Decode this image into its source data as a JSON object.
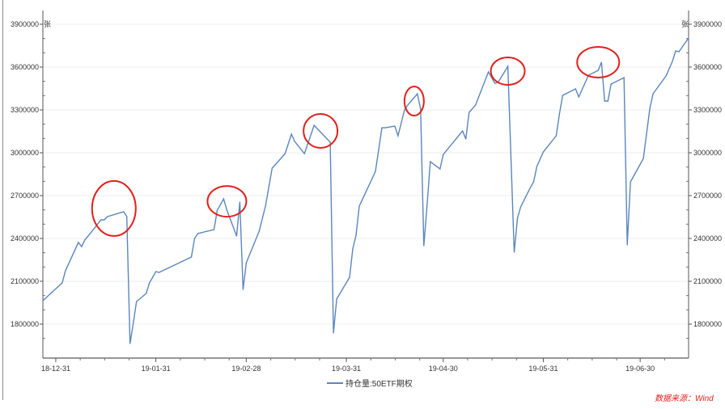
{
  "chart_data": {
    "type": "line",
    "title": "",
    "xlabel": "",
    "ylabel_left": "张",
    "ylabel_right": "张",
    "xlim": [
      "2018-12-27",
      "2019-07-15"
    ],
    "ylim": [
      1650000,
      3960000
    ],
    "grid": true,
    "legend": "bottom-center",
    "x_ticks": [
      {
        "date": "2018-12-31",
        "label": "18-12-31"
      },
      {
        "date": "2019-01-31",
        "label": "19-01-31"
      },
      {
        "date": "2019-02-28",
        "label": "19-02-28"
      },
      {
        "date": "2019-03-31",
        "label": "19-03-31"
      },
      {
        "date": "2019-04-30",
        "label": "19-04-30"
      },
      {
        "date": "2019-05-31",
        "label": "19-05-31"
      },
      {
        "date": "2019-06-30",
        "label": "19-06-30"
      }
    ],
    "y_ticks": [
      {
        "value": 1800000,
        "label": "1800000"
      },
      {
        "value": 2100000,
        "label": "2100000"
      },
      {
        "value": 2400000,
        "label": "2400000"
      },
      {
        "value": 2700000,
        "label": "2700000"
      },
      {
        "value": 3000000,
        "label": "3000000"
      },
      {
        "value": 3300000,
        "label": "3300000"
      },
      {
        "value": 3600000,
        "label": "3600000"
      },
      {
        "value": 3900000,
        "label": "3900000"
      }
    ],
    "series": [
      {
        "name": "持仓量:50ETF期权",
        "color": "#5b86bd",
        "x": [
          "2018-12-27",
          "2019-01-02",
          "2019-01-03",
          "2019-01-07",
          "2019-01-08",
          "2019-01-09",
          "2019-01-10",
          "2019-01-14",
          "2019-01-15",
          "2019-01-16",
          "2019-01-21",
          "2019-01-22",
          "2019-01-23",
          "2019-01-24",
          "2019-01-25",
          "2019-01-28",
          "2019-01-29",
          "2019-01-30",
          "2019-01-31",
          "2019-02-01",
          "2019-02-11",
          "2019-02-12",
          "2019-02-13",
          "2019-02-14",
          "2019-02-18",
          "2019-02-19",
          "2019-02-21",
          "2019-02-22",
          "2019-02-25",
          "2019-02-26",
          "2019-02-27",
          "2019-02-28",
          "2019-03-04",
          "2019-03-06",
          "2019-03-08",
          "2019-03-12",
          "2019-03-14",
          "2019-03-15",
          "2019-03-18",
          "2019-03-21",
          "2019-03-26",
          "2019-03-27",
          "2019-03-28",
          "2019-04-01",
          "2019-04-02",
          "2019-04-03",
          "2019-04-04",
          "2019-04-09",
          "2019-04-11",
          "2019-04-12",
          "2019-04-15",
          "2019-04-16",
          "2019-04-18",
          "2019-04-19",
          "2019-04-22",
          "2019-04-23",
          "2019-04-24",
          "2019-04-25",
          "2019-04-26",
          "2019-04-29",
          "2019-04-30",
          "2019-05-06",
          "2019-05-07",
          "2019-05-08",
          "2019-05-10",
          "2019-05-14",
          "2019-05-16",
          "2019-05-17",
          "2019-05-20",
          "2019-05-22",
          "2019-05-23",
          "2019-05-24",
          "2019-05-27",
          "2019-05-28",
          "2019-05-29",
          "2019-05-31",
          "2019-06-04",
          "2019-06-05",
          "2019-06-06",
          "2019-06-10",
          "2019-06-11",
          "2019-06-14",
          "2019-06-17",
          "2019-06-18",
          "2019-06-19",
          "2019-06-20",
          "2019-06-21",
          "2019-06-25",
          "2019-06-26",
          "2019-06-27",
          "2019-07-01",
          "2019-07-03",
          "2019-07-04",
          "2019-07-08",
          "2019-07-10",
          "2019-07-11",
          "2019-07-12",
          "2019-07-15"
        ],
        "values": [
          1964000,
          2089000,
          2174000,
          2372000,
          2343000,
          2390000,
          2417000,
          2530000,
          2530000,
          2553000,
          2587000,
          2553000,
          1664000,
          1806000,
          1958000,
          2015000,
          2089000,
          2128000,
          2168000,
          2162000,
          2270000,
          2400000,
          2434000,
          2440000,
          2462000,
          2598000,
          2677000,
          2598000,
          2417000,
          2655000,
          2043000,
          2230000,
          2451000,
          2632000,
          2892000,
          2994000,
          3130000,
          3079000,
          2994000,
          3192000,
          3074000,
          1738000,
          1976000,
          2128000,
          2327000,
          2422000,
          2626000,
          2870000,
          3175000,
          3175000,
          3187000,
          3119000,
          3300000,
          3334000,
          3413000,
          3306000,
          2349000,
          2632000,
          2938000,
          2887000,
          2988000,
          3153000,
          3096000,
          3283000,
          3334000,
          3566000,
          3487000,
          3493000,
          3605000,
          2304000,
          2542000,
          2621000,
          2757000,
          2796000,
          2904000,
          3006000,
          3119000,
          3272000,
          3402000,
          3447000,
          3391000,
          3543000,
          3577000,
          3634000,
          3362000,
          3362000,
          3481000,
          3526000,
          2355000,
          2796000,
          2960000,
          3311000,
          3413000,
          3538000,
          3640000,
          3713000,
          3707000,
          3804000
        ]
      }
    ],
    "annotations": [
      {
        "type": "circle",
        "color": "#e0201b",
        "date": "2019-01-18",
        "value": 2610000
      },
      {
        "type": "circle",
        "color": "#e0201b",
        "date": "2019-02-22",
        "value": 2660000
      },
      {
        "type": "circle",
        "color": "#e0201b",
        "date": "2019-03-23",
        "value": 3153000
      },
      {
        "type": "circle",
        "color": "#e0201b",
        "date": "2019-04-21",
        "value": 3362000
      },
      {
        "type": "circle",
        "color": "#e0201b",
        "date": "2019-05-20",
        "value": 3572000
      },
      {
        "type": "circle",
        "color": "#e0201b",
        "date": "2019-06-17",
        "value": 3634000
      }
    ]
  },
  "legend": {
    "label": "持仓量:50ETF期权"
  },
  "source": "数据来源：Wind"
}
